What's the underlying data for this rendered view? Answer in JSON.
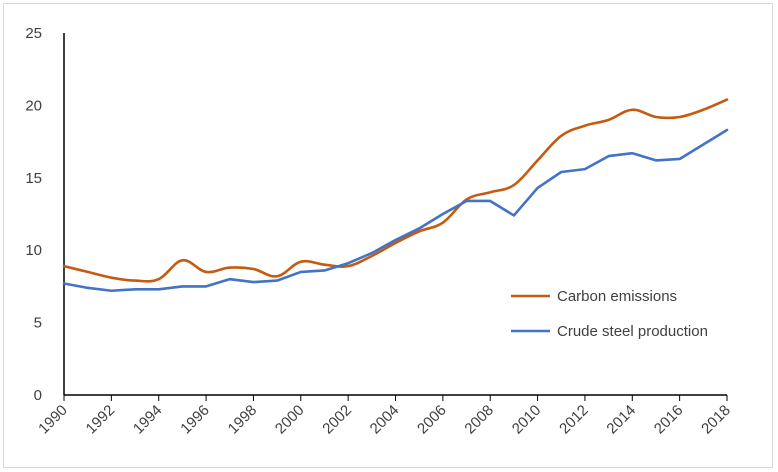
{
  "chart_data": {
    "type": "line",
    "title": "",
    "xlabel": "",
    "ylabel": "",
    "ylim": [
      0,
      25
    ],
    "y_ticks": [
      "0",
      "5",
      "10",
      "15",
      "20",
      "25"
    ],
    "x": [
      1990,
      1991,
      1992,
      1993,
      1994,
      1995,
      1996,
      1997,
      1998,
      1999,
      2000,
      2001,
      2002,
      2003,
      2004,
      2005,
      2006,
      2007,
      2008,
      2009,
      2010,
      2011,
      2012,
      2013,
      2014,
      2015,
      2016,
      2017,
      2018
    ],
    "x_ticks": [
      "1990",
      "1992",
      "1994",
      "1996",
      "1998",
      "2000",
      "2002",
      "2004",
      "2006",
      "2008",
      "2010",
      "2012",
      "2014",
      "2016",
      "2018"
    ],
    "grid": false,
    "legend_position": "right",
    "series": [
      {
        "name": "Carbon emissions",
        "color": "#C55A11",
        "values": [
          8.9,
          8.5,
          8.1,
          7.9,
          8.0,
          9.3,
          8.5,
          8.8,
          8.7,
          8.2,
          9.2,
          9.0,
          8.9,
          9.6,
          10.5,
          11.3,
          11.9,
          13.5,
          14.0,
          14.5,
          16.2,
          17.9,
          18.6,
          19.0,
          19.7,
          19.2,
          19.2,
          19.7,
          20.4
        ]
      },
      {
        "name": "Crude steel production",
        "color": "#4472C4",
        "values": [
          7.7,
          7.4,
          7.2,
          7.3,
          7.3,
          7.5,
          7.5,
          8.0,
          7.8,
          7.9,
          8.5,
          8.6,
          9.1,
          9.8,
          10.7,
          11.5,
          12.5,
          13.4,
          13.4,
          12.4,
          14.3,
          15.4,
          15.6,
          16.5,
          16.7,
          16.2,
          16.3,
          17.3,
          18.3
        ]
      }
    ]
  }
}
